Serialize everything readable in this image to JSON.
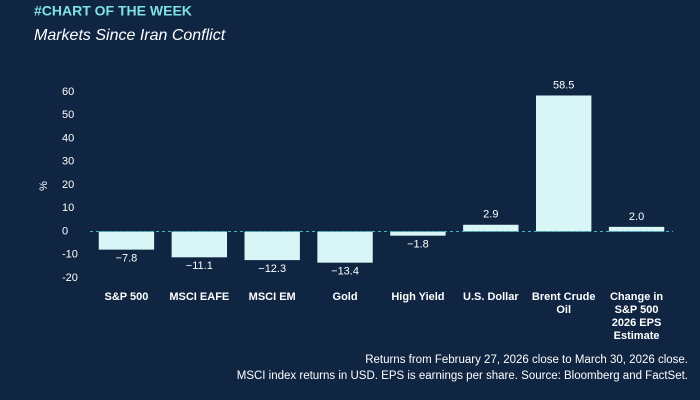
{
  "chart_data": {
    "type": "bar",
    "kicker": "#CHART OF THE WEEK",
    "title": "Markets Since Iran Conflict",
    "y_label": "%",
    "categories": [
      "S&P 500",
      "MSCI EAFE",
      "MSCI EM",
      "Gold",
      "High Yield",
      "U.S. Dollar",
      "Brent Crude Oil",
      "Change in S&P 500 2026 EPS Estimate"
    ],
    "values": [
      -7.8,
      -11.1,
      -12.3,
      -13.4,
      -1.8,
      2.9,
      58.5,
      2.0
    ],
    "value_labels": [
      "−7.8",
      "−11.1",
      "−12.3",
      "−13.4",
      "−1.8",
      "2.9",
      "58.5",
      "2.0"
    ],
    "color": "#d8f6f6",
    "ylim": [
      -20,
      60
    ],
    "yticks": [
      -20,
      -10,
      0,
      10,
      20,
      30,
      40,
      50,
      60
    ],
    "grid": false,
    "zero_line_color": "#3fb6c9",
    "notes": [
      "Returns from February 27, 2026 close to March 30, 2026 close.",
      "MSCI index returns in USD. EPS is earnings per share. Source: Bloomberg and FactSet."
    ]
  }
}
